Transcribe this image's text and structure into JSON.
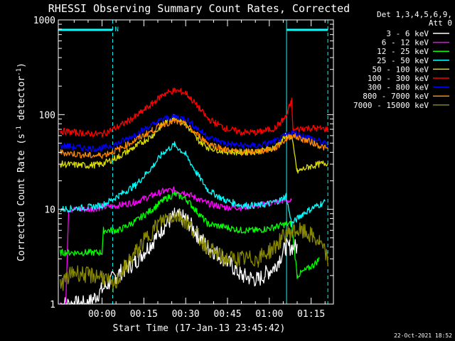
{
  "chart_data": {
    "type": "line",
    "title": "RHESSI Observing Summary Count Rates, Corrected",
    "ylabel_main": "Corrected Count Rate (s",
    "ylabel_sup1": "-1",
    "ylabel_mid": " detector",
    "ylabel_sup2": "-1",
    "ylabel_end": ")",
    "xlabel": "Start Time (17-Jan-13 23:45:42)",
    "y_scale": "log",
    "ylim": [
      1,
      1000
    ],
    "xlim_minutes": [
      -15.7,
      83
    ],
    "x_ticks": [
      {
        "minutes": 0,
        "label": "00:00"
      },
      {
        "minutes": 15,
        "label": "00:15"
      },
      {
        "minutes": 30,
        "label": "00:30"
      },
      {
        "minutes": 45,
        "label": "00:45"
      },
      {
        "minutes": 60,
        "label": "01:00"
      },
      {
        "minutes": 75,
        "label": "01:15"
      }
    ],
    "y_ticks": [
      {
        "value": 1,
        "label": "1"
      },
      {
        "value": 10,
        "label": "10"
      },
      {
        "value": 100,
        "label": "100"
      },
      {
        "value": 1000,
        "label": "1000"
      }
    ],
    "legend_header": [
      "Det 1,3,4,5,6,9,",
      "Att 0"
    ],
    "legend_placement": "right",
    "timestamp": "22-Oct-2021 18:52",
    "night_flag": "N",
    "night_intervals_minutes": [
      [
        -15.7,
        3.8
      ],
      [
        66.2,
        81.0
      ]
    ],
    "series": [
      {
        "name": "3 - 6 keV",
        "color": "#ffffff",
        "points": [
          [
            -15,
            1.0
          ],
          [
            -5,
            1.0
          ],
          [
            5,
            2.0
          ],
          [
            12,
            2.8
          ],
          [
            18,
            4.5
          ],
          [
            22,
            6.5
          ],
          [
            26,
            8.5
          ],
          [
            30,
            8.0
          ],
          [
            34,
            5.5
          ],
          [
            38,
            4.0
          ],
          [
            44,
            3.0
          ],
          [
            50,
            2.0
          ],
          [
            56,
            1.8
          ],
          [
            62,
            2.5
          ],
          [
            66,
            4.0
          ],
          [
            70,
            4.0
          ]
        ]
      },
      {
        "name": "6 - 12 keV",
        "color": "#ff00ff",
        "points": [
          [
            -15,
            1.0
          ],
          [
            -13,
            1.0
          ],
          [
            -12,
            10.0
          ],
          [
            -5,
            10.0
          ],
          [
            0,
            10.5
          ],
          [
            6,
            11.0
          ],
          [
            12,
            12.0
          ],
          [
            18,
            14.0
          ],
          [
            22,
            15.5
          ],
          [
            26,
            16.0
          ],
          [
            30,
            15.0
          ],
          [
            34,
            13.0
          ],
          [
            38,
            11.5
          ],
          [
            44,
            10.5
          ],
          [
            50,
            10.5
          ],
          [
            56,
            11.0
          ],
          [
            62,
            12.0
          ],
          [
            66,
            12.5
          ],
          [
            68,
            12.0
          ]
        ]
      },
      {
        "name": "12 - 25 keV",
        "color": "#00ff00",
        "points": [
          [
            -15,
            3.5
          ],
          [
            -5,
            3.5
          ],
          [
            0,
            3.5
          ],
          [
            0.5,
            6.0
          ],
          [
            6,
            6.0
          ],
          [
            12,
            7.5
          ],
          [
            18,
            10.0
          ],
          [
            22,
            12.5
          ],
          [
            26,
            14.5
          ],
          [
            30,
            13.0
          ],
          [
            34,
            9.5
          ],
          [
            38,
            7.0
          ],
          [
            44,
            6.5
          ],
          [
            50,
            6.0
          ],
          [
            56,
            6.0
          ],
          [
            62,
            6.5
          ],
          [
            66,
            7.0
          ],
          [
            68,
            7.0
          ],
          [
            70,
            2.0
          ],
          [
            76,
            2.6
          ],
          [
            78,
            3.0
          ]
        ]
      },
      {
        "name": "25 - 50 keV",
        "color": "#00ffff",
        "points": [
          [
            -15,
            10.0
          ],
          [
            -5,
            10.5
          ],
          [
            0,
            11.0
          ],
          [
            6,
            14.0
          ],
          [
            12,
            18.0
          ],
          [
            18,
            28.0
          ],
          [
            22,
            40.0
          ],
          [
            26,
            48.0
          ],
          [
            30,
            38.0
          ],
          [
            34,
            24.0
          ],
          [
            38,
            16.0
          ],
          [
            44,
            12.5
          ],
          [
            50,
            11.0
          ],
          [
            56,
            11.0
          ],
          [
            60,
            11.5
          ],
          [
            64,
            12.5
          ],
          [
            66,
            14.0
          ],
          [
            68,
            7.0
          ],
          [
            72,
            9.0
          ],
          [
            76,
            10.5
          ],
          [
            80,
            12.0
          ]
        ]
      },
      {
        "name": "50 - 100 keV",
        "color": "#dddd00",
        "points": [
          [
            -15,
            30.0
          ],
          [
            -5,
            29.0
          ],
          [
            0,
            30.0
          ],
          [
            6,
            36.0
          ],
          [
            12,
            46.0
          ],
          [
            18,
            60.0
          ],
          [
            22,
            80.0
          ],
          [
            26,
            95.0
          ],
          [
            30,
            80.0
          ],
          [
            34,
            55.0
          ],
          [
            38,
            45.0
          ],
          [
            44,
            41.0
          ],
          [
            50,
            40.0
          ],
          [
            56,
            41.0
          ],
          [
            62,
            45.0
          ],
          [
            66,
            60.0
          ],
          [
            68,
            58.0
          ],
          [
            70,
            25.0
          ],
          [
            74,
            28.0
          ],
          [
            78,
            30.0
          ],
          [
            81,
            31.0
          ]
        ]
      },
      {
        "name": "100 - 300 keV",
        "color": "#ff0000",
        "points": [
          [
            -15,
            67.0
          ],
          [
            -5,
            63.0
          ],
          [
            0,
            62.0
          ],
          [
            6,
            75.0
          ],
          [
            12,
            95.0
          ],
          [
            18,
            130.0
          ],
          [
            22,
            165.0
          ],
          [
            26,
            180.0
          ],
          [
            30,
            170.0
          ],
          [
            34,
            125.0
          ],
          [
            38,
            90.0
          ],
          [
            44,
            72.0
          ],
          [
            50,
            65.0
          ],
          [
            56,
            65.0
          ],
          [
            62,
            72.0
          ],
          [
            66,
            95.0
          ],
          [
            68,
            140.0
          ],
          [
            68.5,
            68.0
          ],
          [
            72,
            72.0
          ],
          [
            76,
            72.0
          ],
          [
            81,
            70.0
          ]
        ]
      },
      {
        "name": "300 - 800 keV",
        "color": "#0000ff",
        "points": [
          [
            -15,
            47.0
          ],
          [
            -5,
            44.0
          ],
          [
            0,
            44.0
          ],
          [
            6,
            50.0
          ],
          [
            12,
            62.0
          ],
          [
            18,
            78.0
          ],
          [
            22,
            90.0
          ],
          [
            26,
            95.0
          ],
          [
            30,
            90.0
          ],
          [
            34,
            72.0
          ],
          [
            38,
            58.0
          ],
          [
            44,
            50.0
          ],
          [
            50,
            47.0
          ],
          [
            56,
            47.0
          ],
          [
            62,
            52.0
          ],
          [
            66,
            60.0
          ],
          [
            68,
            65.0
          ],
          [
            72,
            60.0
          ],
          [
            76,
            55.0
          ],
          [
            81,
            48.0
          ]
        ]
      },
      {
        "name": "800 - 7000 keV",
        "color": "#ff8800",
        "points": [
          [
            -15,
            40.0
          ],
          [
            -5,
            37.0
          ],
          [
            0,
            37.0
          ],
          [
            6,
            43.0
          ],
          [
            12,
            54.0
          ],
          [
            18,
            68.0
          ],
          [
            22,
            80.0
          ],
          [
            26,
            85.0
          ],
          [
            30,
            78.0
          ],
          [
            34,
            62.0
          ],
          [
            38,
            50.0
          ],
          [
            44,
            43.0
          ],
          [
            50,
            40.0
          ],
          [
            56,
            41.0
          ],
          [
            62,
            44.0
          ],
          [
            66,
            55.0
          ],
          [
            68,
            60.0
          ],
          [
            72,
            55.0
          ],
          [
            76,
            50.0
          ],
          [
            81,
            43.0
          ]
        ]
      },
      {
        "name": "7000 - 15000 keV",
        "color": "#888800",
        "points": [
          [
            -15,
            1.6
          ],
          [
            -10,
            2.2
          ],
          [
            -5,
            2.0
          ],
          [
            0,
            2.0
          ],
          [
            4,
            1.5
          ],
          [
            8,
            2.4
          ],
          [
            12,
            3.5
          ],
          [
            16,
            5.0
          ],
          [
            20,
            7.0
          ],
          [
            24,
            8.5
          ],
          [
            28,
            8.5
          ],
          [
            32,
            6.5
          ],
          [
            36,
            4.5
          ],
          [
            40,
            3.5
          ],
          [
            44,
            3.0
          ],
          [
            50,
            3.0
          ],
          [
            56,
            3.0
          ],
          [
            62,
            4.0
          ],
          [
            66,
            5.5
          ],
          [
            70,
            6.0
          ],
          [
            74,
            5.5
          ],
          [
            78,
            4.5
          ],
          [
            81,
            3.0
          ]
        ]
      }
    ]
  }
}
